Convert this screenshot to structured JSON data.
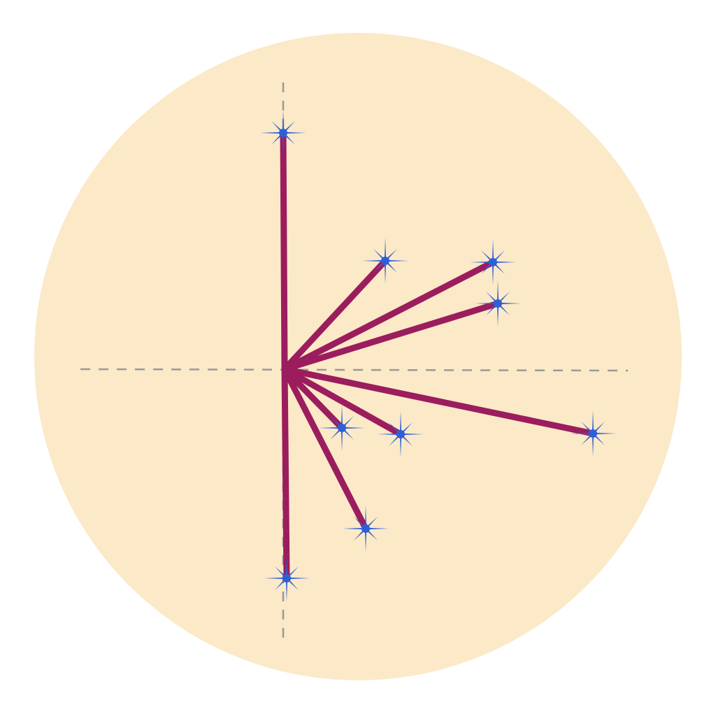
{
  "diagram": {
    "background_disc_color": "#fbe9c8",
    "axis_color": "#9a9a9a",
    "axis_style": "dashed",
    "vector_color": "#9b1d5e",
    "marker_color": "#2f5fd6",
    "marker_icon": "eight-point-star-icon",
    "vector_count": 9
  }
}
